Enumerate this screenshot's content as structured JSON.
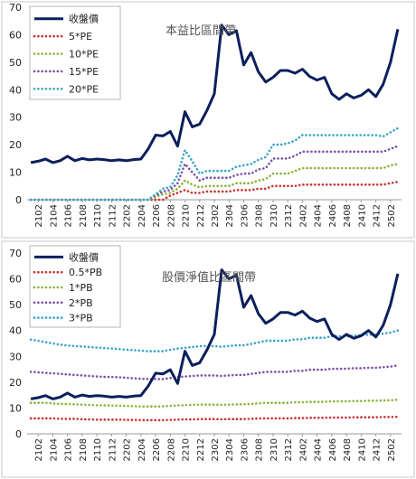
{
  "chart_data": [
    {
      "type": "line",
      "title": "本益比區間帶",
      "x": [
        "2101",
        "2102",
        "2103",
        "2104",
        "2105",
        "2106",
        "2107",
        "2108",
        "2109",
        "2110",
        "2111",
        "2112",
        "2201",
        "2202",
        "2203",
        "2204",
        "2205",
        "2206",
        "2207",
        "2208",
        "2209",
        "2210",
        "2211",
        "2212",
        "2301",
        "2302",
        "2303",
        "2304",
        "2305",
        "2306",
        "2307",
        "2308",
        "2309",
        "2310",
        "2311",
        "2312",
        "2401",
        "2402",
        "2403",
        "2404",
        "2405",
        "2406",
        "2407",
        "2408",
        "2409",
        "2410",
        "2411",
        "2412",
        "2501",
        "2502",
        "2503"
      ],
      "xticks": [
        "2102",
        "2104",
        "2106",
        "2108",
        "2110",
        "2112",
        "2202",
        "2204",
        "2206",
        "2208",
        "2210",
        "2212",
        "2302",
        "2304",
        "2306",
        "2308",
        "2310",
        "2312",
        "2402",
        "2404",
        "2406",
        "2408",
        "2410",
        "2412",
        "2502"
      ],
      "yticks": [
        "0",
        "10",
        "20",
        "30",
        "40",
        "50",
        "60",
        "70"
      ],
      "ylim": [
        0,
        70
      ],
      "legend_position": "top-left",
      "series": [
        {
          "name": "收盤價",
          "style": "solid",
          "color": "#0b1f5c",
          "values": [
            13.5,
            14,
            14.8,
            13.5,
            14.2,
            15.8,
            14.2,
            15,
            14.5,
            14.8,
            14.6,
            14.2,
            14.5,
            14.2,
            14.6,
            14.8,
            18.5,
            23.5,
            23.2,
            24.8,
            19.5,
            32,
            26.5,
            27.5,
            32.5,
            38.5,
            63.5,
            60,
            61.5,
            49,
            53.5,
            46.5,
            42.8,
            44.5,
            47,
            47,
            46,
            47.5,
            44.8,
            43.5,
            44.5,
            38.5,
            36.5,
            38.5,
            37,
            38,
            40,
            37.5,
            42,
            50,
            62
          ]
        },
        {
          "name": "5*PE",
          "style": "dotted",
          "color": "#c83232",
          "values": [
            0,
            0,
            0,
            0,
            0,
            0,
            0,
            0,
            0,
            0,
            0,
            0,
            0,
            0,
            0,
            0,
            0,
            0,
            0,
            1.5,
            2.5,
            3.5,
            2.5,
            2.5,
            3,
            3,
            3,
            3,
            3.5,
            3.5,
            3.5,
            4,
            4,
            5,
            5,
            5,
            5,
            5.5,
            5.5,
            5.5,
            5.5,
            5.5,
            5.5,
            5.5,
            5.5,
            5.5,
            5.5,
            5.5,
            5.5,
            6,
            6.5
          ]
        },
        {
          "name": "10*PE",
          "style": "dotted",
          "color": "#8db33c",
          "values": [
            0,
            0,
            0,
            0,
            0,
            0,
            0,
            0,
            0,
            0,
            0,
            0,
            0,
            0,
            0,
            0,
            0,
            1,
            2,
            2.5,
            4,
            7,
            5.5,
            4.5,
            5,
            5,
            5,
            5,
            6,
            6,
            6,
            7,
            7.5,
            9.5,
            9.5,
            9.5,
            10.5,
            11.5,
            11.5,
            11.5,
            11.5,
            11.5,
            11.5,
            11.5,
            11.5,
            11.5,
            11.5,
            11.5,
            11.5,
            12.5,
            13
          ]
        },
        {
          "name": "15*PE",
          "style": "dotted",
          "color": "#7a52a8",
          "values": [
            0,
            0,
            0,
            0,
            0,
            0,
            0,
            0,
            0,
            0,
            0,
            0,
            0,
            0,
            0,
            0,
            0,
            1.5,
            3,
            3.5,
            6,
            13,
            10,
            7,
            8,
            8,
            8,
            8,
            9,
            9.5,
            9.5,
            11,
            11.5,
            15,
            15,
            15,
            16,
            17.5,
            17.5,
            17.5,
            17.5,
            17.5,
            17.5,
            17.5,
            17.5,
            17.5,
            17.5,
            17.5,
            17.5,
            18.5,
            19.5
          ]
        },
        {
          "name": "20*PE",
          "style": "dotted",
          "color": "#3aa4c8",
          "values": [
            0,
            0,
            0,
            0,
            0,
            0,
            0,
            0,
            0,
            0,
            0,
            0,
            0,
            0,
            0,
            0,
            0,
            2,
            4,
            4.5,
            9,
            18,
            14,
            9.5,
            10.5,
            10.5,
            10.5,
            10.5,
            12,
            12.5,
            13,
            14.5,
            15.5,
            20,
            20,
            20.5,
            21.5,
            23.5,
            23.5,
            23.5,
            23.5,
            23.5,
            23.5,
            23.5,
            23.5,
            23.5,
            23.5,
            23.5,
            23,
            24.5,
            26
          ]
        }
      ]
    },
    {
      "type": "line",
      "title": "股價淨值比區間帶",
      "x": [
        "2101",
        "2102",
        "2103",
        "2104",
        "2105",
        "2106",
        "2107",
        "2108",
        "2109",
        "2110",
        "2111",
        "2112",
        "2201",
        "2202",
        "2203",
        "2204",
        "2205",
        "2206",
        "2207",
        "2208",
        "2209",
        "2210",
        "2211",
        "2212",
        "2301",
        "2302",
        "2303",
        "2304",
        "2305",
        "2306",
        "2307",
        "2308",
        "2309",
        "2310",
        "2311",
        "2312",
        "2401",
        "2402",
        "2403",
        "2404",
        "2405",
        "2406",
        "2407",
        "2408",
        "2409",
        "2410",
        "2411",
        "2412",
        "2501",
        "2502",
        "2503"
      ],
      "xticks": [
        "2102",
        "2104",
        "2106",
        "2108",
        "2110",
        "2112",
        "2202",
        "2204",
        "2206",
        "2208",
        "2210",
        "2212",
        "2302",
        "2304",
        "2306",
        "2308",
        "2310",
        "2312",
        "2402",
        "2404",
        "2406",
        "2408",
        "2410",
        "2412",
        "2502"
      ],
      "yticks": [
        "0",
        "10",
        "20",
        "30",
        "40",
        "50",
        "60",
        "70"
      ],
      "ylim": [
        0,
        70
      ],
      "legend_position": "top-left",
      "series": [
        {
          "name": "收盤價",
          "style": "solid",
          "color": "#0b1f5c",
          "values": [
            13.5,
            14,
            14.8,
            13.5,
            14.2,
            15.8,
            14.2,
            15,
            14.5,
            14.8,
            14.6,
            14.2,
            14.5,
            14.2,
            14.6,
            14.8,
            18.5,
            23.5,
            23.2,
            24.8,
            19.5,
            32,
            26.5,
            27.5,
            32.5,
            38.5,
            63.5,
            60,
            61.5,
            49,
            53.5,
            46.5,
            42.8,
            44.5,
            47,
            47,
            46,
            47.5,
            44.8,
            43.5,
            44.5,
            38.5,
            36.5,
            38.5,
            37,
            38,
            40,
            37.5,
            42,
            50,
            62
          ]
        },
        {
          "name": "0.5*PB",
          "style": "dotted",
          "color": "#c83232",
          "values": [
            6,
            6,
            6,
            6,
            5.8,
            5.8,
            5.8,
            5.6,
            5.6,
            5.5,
            5.5,
            5.5,
            5.5,
            5.4,
            5.4,
            5.3,
            5.3,
            5.3,
            5.3,
            5.4,
            5.5,
            5.6,
            5.6,
            5.7,
            5.7,
            5.7,
            5.6,
            5.7,
            5.7,
            5.7,
            5.8,
            5.9,
            6,
            6,
            6,
            6,
            6.1,
            6.1,
            6.2,
            6.2,
            6.2,
            6.3,
            6.3,
            6.3,
            6.4,
            6.4,
            6.4,
            6.4,
            6.5,
            6.5,
            6.6
          ]
        },
        {
          "name": "1*PB",
          "style": "dotted",
          "color": "#8db33c",
          "values": [
            12,
            12,
            12,
            11.8,
            11.6,
            11.5,
            11.4,
            11.3,
            11.2,
            11.1,
            11,
            11,
            10.9,
            10.8,
            10.7,
            10.6,
            10.6,
            10.6,
            10.6,
            10.8,
            11,
            11.1,
            11.2,
            11.3,
            11.3,
            11.3,
            11.2,
            11.3,
            11.4,
            11.4,
            11.6,
            11.8,
            12,
            12,
            12,
            12,
            12.2,
            12.2,
            12.4,
            12.4,
            12.4,
            12.6,
            12.6,
            12.6,
            12.7,
            12.7,
            12.8,
            12.8,
            12.9,
            13,
            13.2
          ]
        },
        {
          "name": "2*PB",
          "style": "dotted",
          "color": "#7a52a8",
          "values": [
            24,
            23.8,
            23.6,
            23.4,
            23.2,
            23,
            22.8,
            22.6,
            22.4,
            22.2,
            22.1,
            22,
            21.9,
            21.7,
            21.5,
            21.3,
            21.2,
            21.2,
            21.2,
            21.6,
            22,
            22.2,
            22.4,
            22.6,
            22.6,
            22.6,
            22.4,
            22.6,
            22.8,
            22.8,
            23.2,
            23.6,
            24,
            24,
            24,
            24,
            24.4,
            24.4,
            24.8,
            24.8,
            24.8,
            25.2,
            25.2,
            25.2,
            25.4,
            25.4,
            25.6,
            25.6,
            25.8,
            26,
            26.5
          ]
        },
        {
          "name": "3*PB",
          "style": "dotted",
          "color": "#3aa4c8",
          "values": [
            36.5,
            36,
            35.5,
            35,
            34.5,
            34.2,
            34,
            33.8,
            33.6,
            33.4,
            33.2,
            33,
            32.8,
            32.6,
            32.4,
            32.2,
            32,
            32,
            32,
            32.5,
            33,
            33.3,
            33.6,
            33.9,
            34,
            34,
            33.7,
            34,
            34.3,
            34.3,
            34.8,
            35.4,
            36,
            36,
            36,
            36,
            36.6,
            36.6,
            37.2,
            37.2,
            37.2,
            37.8,
            37.8,
            37.8,
            38,
            38.2,
            38.4,
            38.4,
            38.8,
            39.2,
            40
          ]
        }
      ]
    }
  ]
}
